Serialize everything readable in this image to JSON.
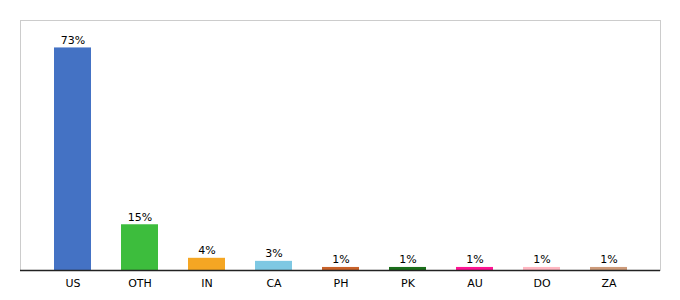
{
  "chart_data": {
    "type": "bar",
    "categories": [
      "US",
      "OTH",
      "IN",
      "CA",
      "PH",
      "PK",
      "AU",
      "DO",
      "ZA"
    ],
    "values": [
      73,
      15,
      4,
      3,
      1,
      1,
      1,
      1,
      1
    ],
    "value_labels": [
      "73%",
      "15%",
      "4%",
      "3%",
      "1%",
      "1%",
      "1%",
      "1%",
      "1%"
    ],
    "colors": [
      "#4472c4",
      "#3dbd3d",
      "#f5a623",
      "#7ec8e3",
      "#c8622a",
      "#1a6e1a",
      "#ff1493",
      "#ffb6c1",
      "#cd9b7a"
    ],
    "ylim": [
      0,
      82
    ],
    "data_labels": true,
    "tick_labels": "x",
    "grid": false
  }
}
